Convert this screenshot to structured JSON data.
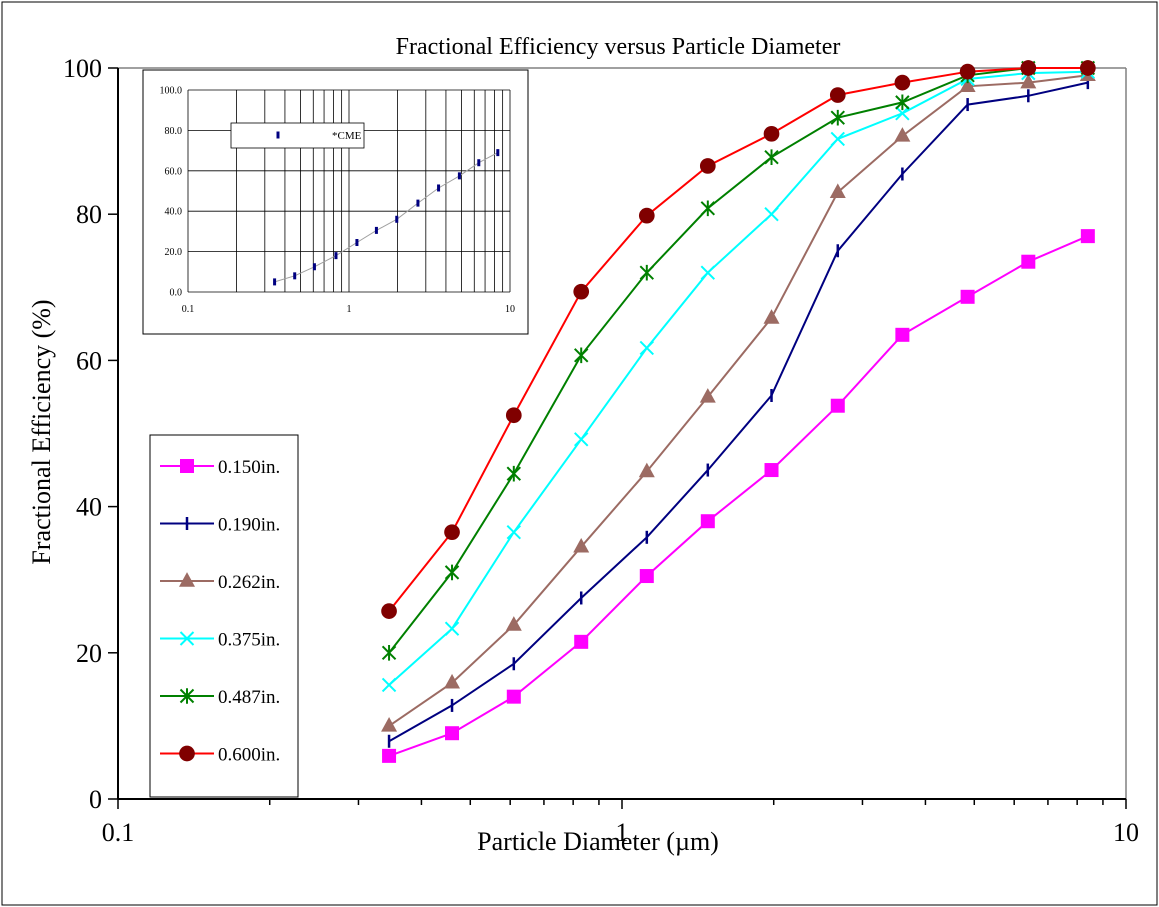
{
  "chart_data": {
    "type": "line",
    "title": "Fractional Efficiency versus Particle Diameter",
    "xlabel": "Particle Diameter (µm)",
    "ylabel": "Fractional Efficiency (%)",
    "x_scale": "log",
    "xlim": [
      0.1,
      10
    ],
    "ylim": [
      0,
      100
    ],
    "x_ticks": [
      0.1,
      1,
      10
    ],
    "x_tick_labels": [
      "0.1",
      "1",
      "10"
    ],
    "y_ticks": [
      0,
      20,
      40,
      60,
      80,
      100
    ],
    "y_tick_labels": [
      "0",
      "20",
      "40",
      "60",
      "80",
      "100"
    ],
    "legend_position": "left",
    "x": [
      0.345,
      0.46,
      0.61,
      0.83,
      1.12,
      1.48,
      1.98,
      2.68,
      3.6,
      4.85,
      6.4,
      8.4
    ],
    "series": [
      {
        "name": "0.150in.",
        "color": "#ff00ff",
        "marker": "square",
        "values": [
          5.9,
          9.0,
          14.0,
          21.5,
          30.5,
          38.0,
          45.0,
          53.8,
          63.5,
          68.7,
          73.5,
          77.0
        ]
      },
      {
        "name": "0.190in.",
        "color": "#000080",
        "marker": "dash",
        "values": [
          7.9,
          12.8,
          18.5,
          27.5,
          35.8,
          45.0,
          55.2,
          75.0,
          85.5,
          95.0,
          96.2,
          98.0
        ]
      },
      {
        "name": "0.262in.",
        "color": "#9c6b63",
        "marker": "triangle",
        "values": [
          10.0,
          15.9,
          23.8,
          34.5,
          44.8,
          55.0,
          65.8,
          83.0,
          90.7,
          97.5,
          98.0,
          99.0
        ]
      },
      {
        "name": "0.375in.",
        "color": "#00ffff",
        "marker": "x",
        "values": [
          15.6,
          23.3,
          36.5,
          49.2,
          61.7,
          72.0,
          80.0,
          90.3,
          93.8,
          98.5,
          99.3,
          99.5
        ]
      },
      {
        "name": "0.487in.",
        "color": "#008000",
        "marker": "star",
        "values": [
          20.0,
          31.0,
          44.5,
          60.7,
          72.0,
          80.8,
          87.8,
          93.2,
          95.3,
          99.0,
          100.0,
          100.0
        ]
      },
      {
        "name": "0.600in.",
        "color": "#ff0000",
        "marker": "circle",
        "marker_fill": "#800000",
        "values": [
          25.7,
          36.5,
          52.5,
          69.4,
          79.8,
          86.6,
          91.0,
          96.3,
          98.0,
          99.5,
          100.0,
          100.0
        ]
      }
    ],
    "inset": {
      "type": "line",
      "x_scale": "log",
      "xlim": [
        0.1,
        10
      ],
      "ylim": [
        0,
        100
      ],
      "x_tick_labels": [
        "0.1",
        "1",
        "10"
      ],
      "y_ticks": [
        0,
        20,
        40,
        60,
        80,
        100
      ],
      "y_tick_labels": [
        "0.0",
        "20.0",
        "40.0",
        "60.0",
        "80.0",
        "100.0"
      ],
      "grid": true,
      "legend_position": "top-left",
      "series": [
        {
          "name": "*CME",
          "color": "#000080",
          "marker": "dash",
          "x": [
            0.345,
            0.46,
            0.61,
            0.83,
            1.12,
            1.48,
            1.98,
            2.68,
            3.6,
            4.85,
            6.4,
            8.4
          ],
          "values": [
            5.0,
            8.0,
            12.5,
            18.0,
            24.5,
            30.5,
            36.0,
            44.0,
            51.5,
            57.5,
            64.0,
            69.0
          ]
        }
      ]
    }
  }
}
